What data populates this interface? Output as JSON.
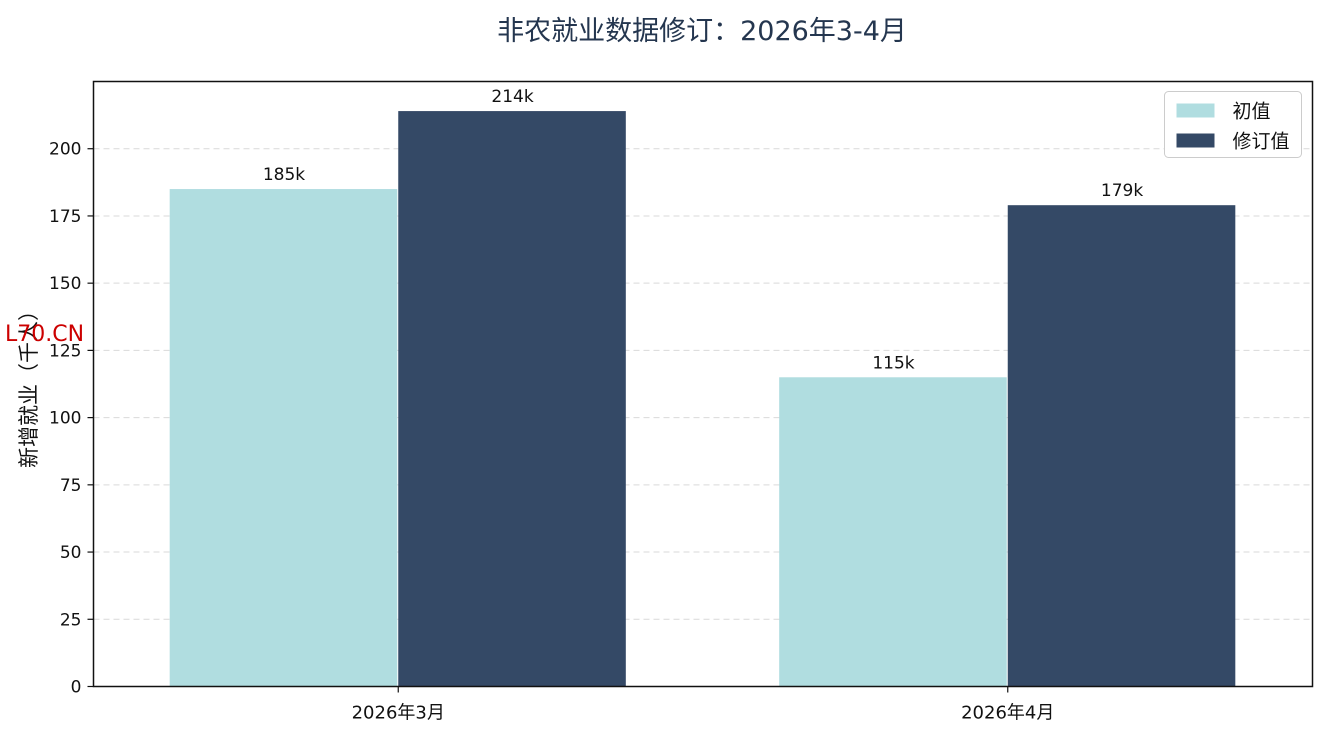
{
  "chart_data": {
    "type": "bar",
    "title": "非农就业数据修订：2026年3-4月",
    "xlabel": "",
    "ylabel": "新增就业（千人）",
    "categories": [
      "2026年3月",
      "2026年4月"
    ],
    "series": [
      {
        "name": "初值",
        "values": [
          185,
          115
        ],
        "labels": [
          "185k",
          "115k"
        ],
        "color": "#b0dde0"
      },
      {
        "name": "修订值",
        "values": [
          214,
          179
        ],
        "labels": [
          "214k",
          "179k"
        ],
        "color": "#344966"
      }
    ],
    "ylim": [
      0,
      225
    ],
    "yticks": [
      0,
      25,
      50,
      75,
      100,
      125,
      150,
      175,
      200
    ],
    "grid": "horizontal dashed",
    "legend_position": "top-right"
  },
  "watermark": "L70.CN"
}
